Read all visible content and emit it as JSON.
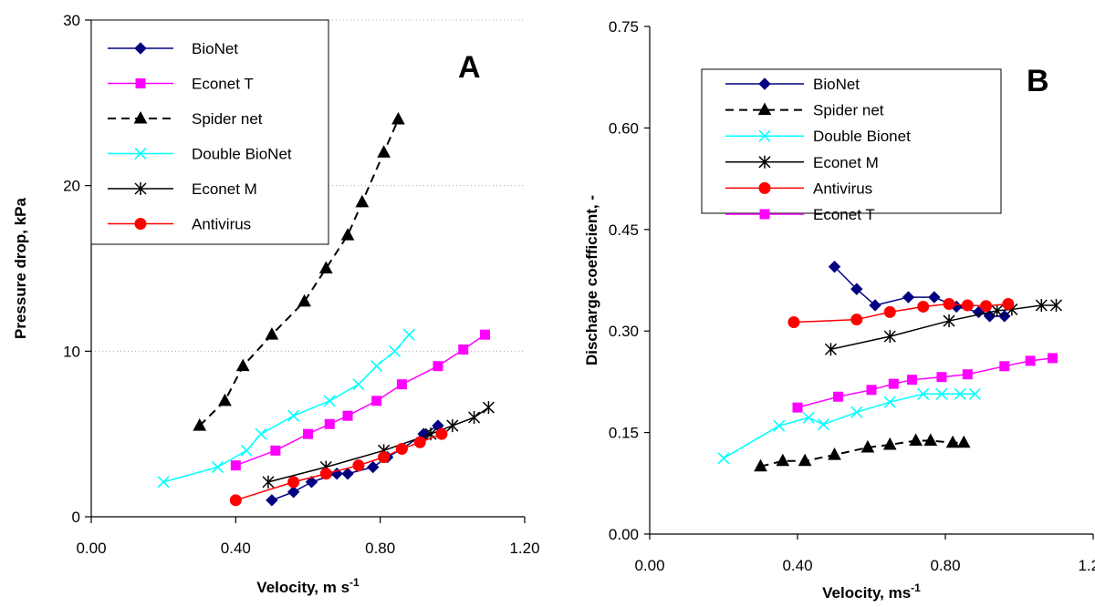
{
  "chart_data": [
    {
      "type": "line",
      "panel_label": "A",
      "xlabel": "Velocity, m s",
      "xlabel_sup": "-1",
      "ylabel": "Pressure drop, kPa",
      "xlim": [
        0,
        1.2
      ],
      "ylim": [
        0,
        30
      ],
      "xticks": [
        "0.00",
        "0.40",
        "0.80",
        "1.20"
      ],
      "yticks": [
        "0",
        "10",
        "20",
        "30"
      ],
      "grid": "horizontal dotted",
      "legend_position": "top-left",
      "legend_order": [
        "BioNet",
        "Econet T",
        "Spider net",
        "Double BioNet",
        "Econet M",
        "Antivirus"
      ],
      "series": [
        {
          "name": "BioNet",
          "color": "#000080",
          "marker": "diamond",
          "dash": "solid",
          "x": [
            0.5,
            0.56,
            0.61,
            0.68,
            0.71,
            0.78,
            0.82,
            0.86,
            0.92,
            0.96
          ],
          "y": [
            1.0,
            1.5,
            2.1,
            2.6,
            2.6,
            3.0,
            3.6,
            4.1,
            5.0,
            5.5
          ]
        },
        {
          "name": "Econet T",
          "color": "#ff00ff",
          "marker": "square",
          "dash": "solid",
          "x": [
            0.4,
            0.51,
            0.6,
            0.66,
            0.71,
            0.79,
            0.86,
            0.96,
            1.03,
            1.09
          ],
          "y": [
            3.1,
            4.0,
            5.0,
            5.6,
            6.1,
            7.0,
            8.0,
            9.1,
            10.1,
            11.0
          ]
        },
        {
          "name": "Spider net",
          "color": "#000000",
          "marker": "triangle",
          "dash": "dashed",
          "x": [
            0.3,
            0.37,
            0.42,
            0.5,
            0.59,
            0.65,
            0.71,
            0.75,
            0.81,
            0.85
          ],
          "y": [
            5.5,
            7.0,
            9.1,
            11.0,
            13.0,
            15.0,
            17.0,
            19.0,
            22.0,
            24.0
          ]
        },
        {
          "name": "Double BioNet",
          "color": "#00ffff",
          "marker": "x",
          "dash": "solid",
          "x": [
            0.2,
            0.35,
            0.43,
            0.47,
            0.56,
            0.66,
            0.74,
            0.79,
            0.84,
            0.88
          ],
          "y": [
            2.1,
            3.0,
            4.0,
            5.0,
            6.1,
            7.0,
            8.0,
            9.1,
            10.0,
            11.0
          ]
        },
        {
          "name": "Econet M",
          "color": "#000000",
          "marker": "asterisk",
          "dash": "solid",
          "x": [
            0.49,
            0.65,
            0.81,
            0.94,
            1.0,
            1.06,
            1.1
          ],
          "y": [
            2.1,
            3.0,
            4.0,
            5.0,
            5.5,
            6.0,
            6.6
          ]
        },
        {
          "name": "Antivirus",
          "color": "#ff0000",
          "marker": "circle",
          "dash": "solid",
          "x": [
            0.4,
            0.56,
            0.65,
            0.74,
            0.81,
            0.86,
            0.91,
            0.97
          ],
          "y": [
            1.0,
            2.1,
            2.6,
            3.1,
            3.6,
            4.1,
            4.5,
            5.0
          ]
        }
      ]
    },
    {
      "type": "line",
      "panel_label": "B",
      "xlabel": "Velocity, ms",
      "xlabel_sup": "-1",
      "ylabel": "Discharge coefficient, -",
      "xlim": [
        0,
        1.2
      ],
      "ylim": [
        0,
        0.75
      ],
      "xticks": [
        "0.00",
        "0.40",
        "0.80",
        "1.20"
      ],
      "yticks": [
        "0.00",
        "0.15",
        "0.30",
        "0.45",
        "0.60",
        "0.75"
      ],
      "grid": "none",
      "legend_position": "top-left",
      "legend_order": [
        "BioNet",
        "Spider net",
        "Double Bionet",
        "Econet M",
        "Antivirus",
        "Econet T"
      ],
      "series": [
        {
          "name": "BioNet",
          "color": "#000080",
          "marker": "diamond",
          "dash": "solid",
          "x": [
            0.5,
            0.56,
            0.61,
            0.7,
            0.77,
            0.83,
            0.89,
            0.92,
            0.96
          ],
          "y": [
            0.395,
            0.362,
            0.338,
            0.35,
            0.35,
            0.336,
            0.328,
            0.322,
            0.322
          ]
        },
        {
          "name": "Spider net",
          "color": "#000000",
          "marker": "triangle",
          "dash": "dashed",
          "x": [
            0.3,
            0.36,
            0.42,
            0.5,
            0.59,
            0.65,
            0.72,
            0.76,
            0.82,
            0.85
          ],
          "y": [
            0.1,
            0.108,
            0.108,
            0.117,
            0.128,
            0.132,
            0.138,
            0.138,
            0.135,
            0.135
          ]
        },
        {
          "name": "Double Bionet",
          "color": "#00ffff",
          "marker": "x",
          "dash": "solid",
          "x": [
            0.2,
            0.35,
            0.43,
            0.47,
            0.56,
            0.65,
            0.74,
            0.79,
            0.84,
            0.88
          ],
          "y": [
            0.112,
            0.16,
            0.172,
            0.162,
            0.18,
            0.195,
            0.207,
            0.207,
            0.207,
            0.207
          ]
        },
        {
          "name": "Econet M",
          "color": "#000000",
          "marker": "asterisk",
          "dash": "solid",
          "x": [
            0.49,
            0.65,
            0.81,
            0.94,
            0.98,
            1.06,
            1.1
          ],
          "y": [
            0.273,
            0.292,
            0.315,
            0.33,
            0.332,
            0.338,
            0.338
          ]
        },
        {
          "name": "Antivirus",
          "color": "#ff0000",
          "marker": "circle",
          "dash": "solid",
          "x": [
            0.39,
            0.56,
            0.65,
            0.74,
            0.81,
            0.86,
            0.91,
            0.97
          ],
          "y": [
            0.313,
            0.317,
            0.328,
            0.336,
            0.34,
            0.338,
            0.337,
            0.34
          ]
        },
        {
          "name": "Econet T",
          "color": "#ff00ff",
          "marker": "square",
          "dash": "solid",
          "x": [
            0.4,
            0.51,
            0.6,
            0.66,
            0.71,
            0.79,
            0.86,
            0.96,
            1.03,
            1.09
          ],
          "y": [
            0.187,
            0.203,
            0.213,
            0.222,
            0.228,
            0.232,
            0.236,
            0.248,
            0.256,
            0.26
          ]
        }
      ]
    }
  ]
}
